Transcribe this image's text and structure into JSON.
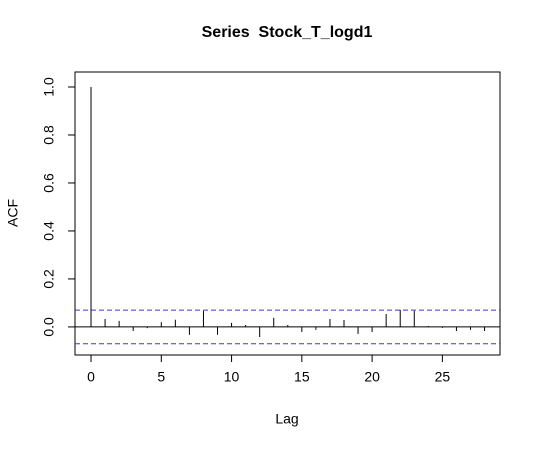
{
  "chart_data": {
    "type": "acf",
    "title": "Series  Stock_T_logd1",
    "x_label": "Lag",
    "y_label": "ACF",
    "x": [
      0,
      1,
      2,
      3,
      4,
      5,
      6,
      7,
      8,
      9,
      10,
      11,
      12,
      13,
      14,
      15,
      16,
      17,
      18,
      19,
      20,
      21,
      22,
      23,
      24,
      25,
      26,
      27,
      28
    ],
    "values": [
      1,
      0.033,
      0.025,
      -0.017,
      -0.005,
      0.02,
      0.03,
      -0.033,
      0.067,
      -0.033,
      0.017,
      0.008,
      -0.042,
      0.038,
      0.008,
      -0.021,
      -0.012,
      0.033,
      0.029,
      -0.029,
      -0.021,
      0.054,
      0.071,
      0.067,
      0.004,
      -0.004,
      -0.017,
      -0.012,
      -0.017
    ],
    "confidence_bounds": [
      -0.07,
      0.07
    ],
    "bound_color": "#3a3acc",
    "color": "#000000",
    "xlim": [
      -1.14,
      29.1
    ],
    "ylim": [
      -0.117,
      1.0625
    ],
    "xticks": [
      0,
      5,
      10,
      15,
      20,
      25
    ],
    "yticks": [
      {
        "value": 0,
        "label": "0.0"
      },
      0.2,
      0.4,
      0.6,
      0.8,
      {
        "value": 1,
        "label": "1.0"
      }
    ]
  }
}
